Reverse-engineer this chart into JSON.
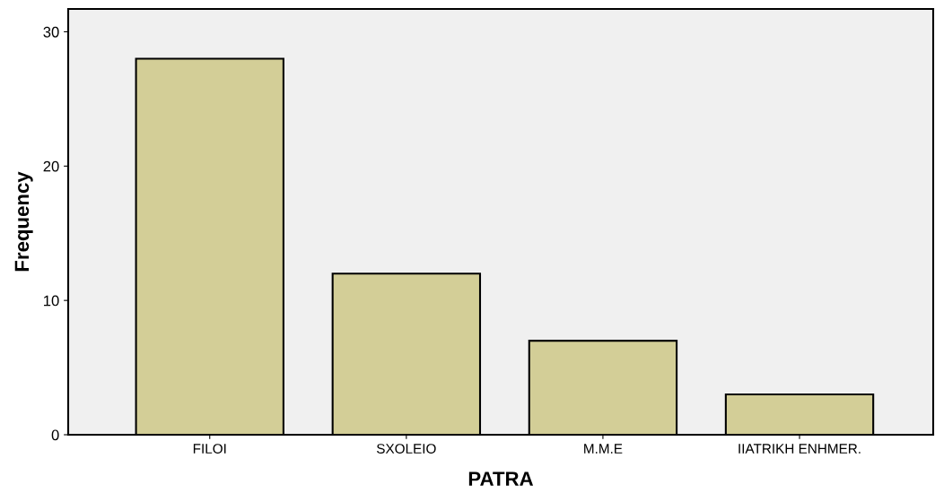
{
  "chart_data": {
    "type": "bar",
    "xlabel": "PATRA",
    "ylabel": "Frequency",
    "categories": [
      "FILOI",
      "SXOLEIO",
      "M.M.E",
      "IIATRIKH ENHMER."
    ],
    "values": [
      28,
      12,
      7,
      3
    ],
    "color": "#d3ce97",
    "ylim": [
      0,
      31.7
    ],
    "yticks": [
      0,
      10,
      20,
      30
    ],
    "grid": false,
    "legend": false
  }
}
